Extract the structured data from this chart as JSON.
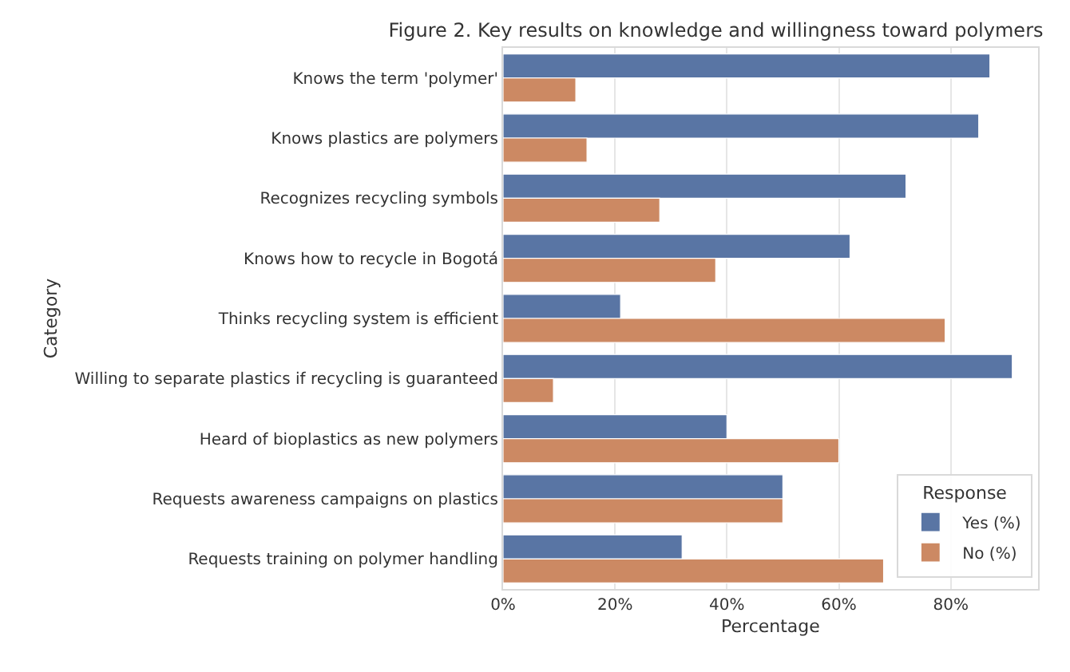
{
  "chart_data": {
    "type": "bar",
    "orientation": "horizontal",
    "title": "Figure 2. Key results on knowledge and willingness toward polymers",
    "xlabel": "Percentage",
    "ylabel": "Category",
    "legend_title": "Response",
    "categories": [
      "Knows the term 'polymer'",
      "Knows plastics are polymers",
      "Recognizes recycling symbols",
      "Knows how to recycle in Bogotá",
      "Thinks recycling system is efficient",
      "Willing to separate plastics if recycling is guaranteed",
      "Heard of bioplastics as new polymers",
      "Requests awareness campaigns on plastics",
      "Requests training on polymer handling"
    ],
    "series": [
      {
        "name": "Yes (%)",
        "color": "#5975a4",
        "values": [
          87,
          85,
          72,
          62,
          21,
          91,
          40,
          50,
          32
        ]
      },
      {
        "name": "No (%)",
        "color": "#cc8963",
        "values": [
          13,
          15,
          28,
          38,
          79,
          9,
          60,
          50,
          68
        ]
      }
    ],
    "xlim": [
      0,
      95.6
    ],
    "xticks": [
      {
        "value": 0,
        "label": "0%"
      },
      {
        "value": 20,
        "label": "20%"
      },
      {
        "value": 40,
        "label": "40%"
      },
      {
        "value": 60,
        "label": "60%"
      },
      {
        "value": 80,
        "label": "80%"
      }
    ],
    "grid": "x",
    "legend": "bottom right"
  }
}
